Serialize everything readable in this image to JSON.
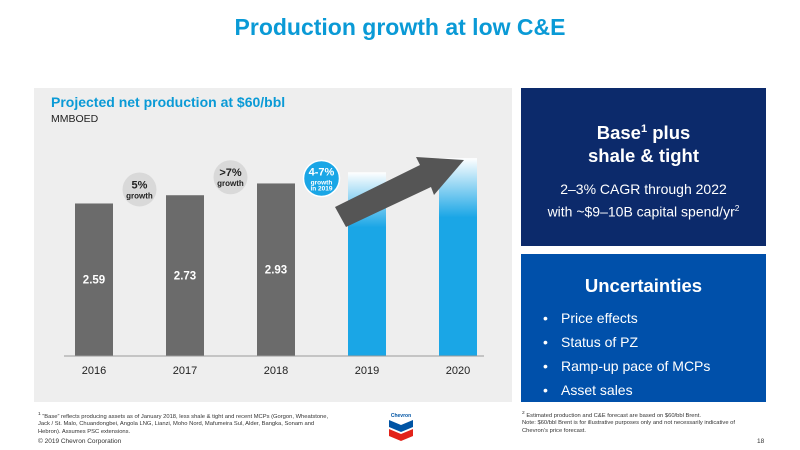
{
  "slide": {
    "title": "Production growth at low C&E",
    "page_number": "18",
    "copyright": "© 2019 Chevron Corporation"
  },
  "chart_data": {
    "type": "bar",
    "title": "Projected net production at $60/bbl",
    "ylabel": "MMBOED",
    "categories": [
      "2016",
      "2017",
      "2018",
      "2019",
      "2020"
    ],
    "values": [
      2.59,
      2.73,
      2.93,
      null,
      null
    ],
    "value_labels": [
      "2.59",
      "2.73",
      "2.93",
      "",
      ""
    ],
    "projected_bar_heights": [
      3.12,
      3.36
    ],
    "ylim": [
      0,
      3.6
    ],
    "colors": {
      "actual": "#6b6b6b",
      "projected": "#1aa6e6",
      "projected_top": "#ffffff"
    },
    "annotations": [
      {
        "main": "5%",
        "sub": "growth",
        "style": "grey-circle"
      },
      {
        "main": ">7%",
        "sub": "growth",
        "style": "grey-circle"
      },
      {
        "main": "4-7%",
        "sub": "growth in 2019",
        "style": "blue-circle"
      }
    ],
    "trend_arrow": true
  },
  "base_box": {
    "heading_line1": "Base",
    "heading_sup": "1",
    "heading_line1_suffix": " plus",
    "heading_line2": "shale & tight",
    "body_line1": "2–3% CAGR through 2022",
    "body_line2": "with ~$9–10B capital spend/yr",
    "body_sup": "2",
    "color": "#0c2a6b"
  },
  "uncertainties_box": {
    "heading": "Uncertainties",
    "items": [
      "Price effects",
      "Status of PZ",
      "Ramp-up pace of MCPs",
      "Asset sales"
    ],
    "color": "#0050aa"
  },
  "footnotes": {
    "left_marker": "1",
    "left": "“Base” reflects producing assets as of January 2018, less shale & tight and recent MCPs (Gorgon, Wheatstone, Jack / St. Malo, Chuandongbei, Angola LNG, Lianzi, Moho Nord, Mafumeira Sul, Alder, Bangka, Sonam and Hebron).  Assumes PSC extensions.",
    "right_marker": "2",
    "right_line1": "Estimated production and C&E forecast are based on $60/bbl Brent.",
    "right_line2": "Note: $60/bbl Brent is for illustrative purposes only and not necessarily indicative of Chevron’s price forecast."
  },
  "logo": {
    "text": "Chevron",
    "colors": [
      "#e2231a",
      "#0054a4"
    ]
  }
}
